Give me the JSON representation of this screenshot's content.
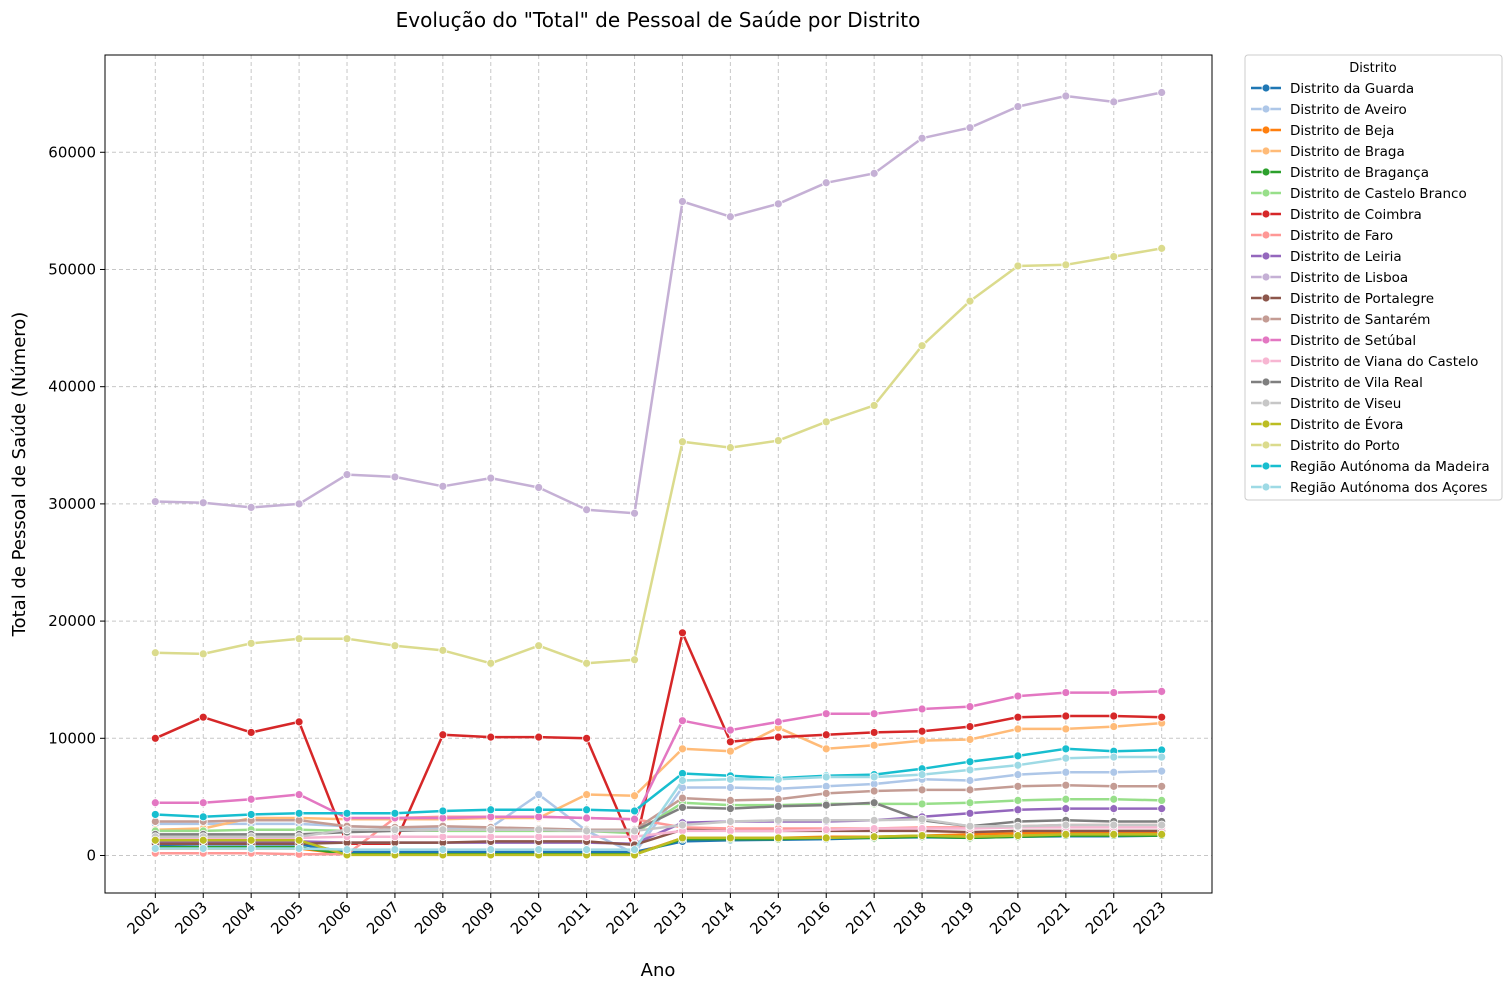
{
  "chart_data": {
    "type": "line",
    "title": "Evolução do \"Total\" de Pessoal de Saúde por Distrito",
    "xlabel": "Ano",
    "ylabel": "Total de Pessoal de Saúde (Número)",
    "x": [
      2002,
      2003,
      2004,
      2005,
      2006,
      2007,
      2008,
      2009,
      2010,
      2011,
      2012,
      2013,
      2014,
      2015,
      2016,
      2017,
      2018,
      2019,
      2020,
      2021,
      2022,
      2023
    ],
    "x_tick_labels": [
      "2002",
      "2003",
      "2004",
      "2005",
      "2006",
      "2007",
      "2008",
      "2009",
      "2010",
      "2011",
      "2012",
      "2013",
      "2014",
      "2015",
      "2016",
      "2017",
      "2018",
      "2019",
      "2020",
      "2021",
      "2022",
      "2023"
    ],
    "ylim": [
      -3200,
      68300
    ],
    "y_ticks": [
      0,
      10000,
      20000,
      30000,
      40000,
      50000,
      60000
    ],
    "y_tick_labels": [
      "0",
      "10000",
      "20000",
      "30000",
      "40000",
      "50000",
      "60000"
    ],
    "grid": true,
    "legend_title": "Distrito",
    "legend_position": "outside-top-right",
    "series": [
      {
        "name": "Distrito da Guarda",
        "color": "#1f77b4",
        "values": [
          900,
          950,
          950,
          950,
          300,
          300,
          300,
          300,
          300,
          300,
          300,
          1200,
          1300,
          1350,
          1400,
          1500,
          1550,
          1500,
          1600,
          1650,
          1650,
          1700
        ]
      },
      {
        "name": "Distrito de Aveiro",
        "color": "#aec7e8",
        "values": [
          2700,
          2700,
          2700,
          2700,
          2500,
          2400,
          2400,
          2400,
          5200,
          2100,
          200,
          5800,
          5800,
          5700,
          5900,
          6100,
          6500,
          6400,
          6900,
          7100,
          7100,
          7200
        ]
      },
      {
        "name": "Distrito de Beja",
        "color": "#ff7f0e",
        "values": [
          600,
          600,
          600,
          600,
          100,
          100,
          100,
          100,
          100,
          100,
          100,
          1500,
          1500,
          1500,
          1600,
          1600,
          1700,
          1800,
          1900,
          1950,
          1950,
          2000
        ]
      },
      {
        "name": "Distrito de Braga",
        "color": "#ffbb78",
        "values": [
          2200,
          2300,
          3200,
          3200,
          3100,
          3100,
          3100,
          3200,
          3200,
          5200,
          5100,
          9100,
          8900,
          10900,
          9100,
          9400,
          9800,
          9900,
          10800,
          10800,
          11000,
          11300
        ]
      },
      {
        "name": "Distrito de Bragança",
        "color": "#2ca02c",
        "values": [
          700,
          700,
          700,
          700,
          100,
          100,
          100,
          100,
          100,
          100,
          100,
          1400,
          1400,
          1400,
          1500,
          1500,
          1600,
          1500,
          1600,
          1700,
          1700,
          1700
        ]
      },
      {
        "name": "Distrito de Castelo Branco",
        "color": "#98df8a",
        "values": [
          2100,
          2100,
          2200,
          2200,
          2100,
          2200,
          2100,
          2100,
          2100,
          2100,
          1900,
          4500,
          4300,
          4300,
          4400,
          4400,
          4400,
          4500,
          4700,
          4800,
          4800,
          4700
        ]
      },
      {
        "name": "Distrito de Coimbra",
        "color": "#d62728",
        "values": [
          10000,
          11800,
          10500,
          11400,
          1000,
          1000,
          10300,
          10100,
          10100,
          10000,
          500,
          19000,
          9700,
          10100,
          10300,
          10500,
          10600,
          11000,
          11800,
          11900,
          11900,
          11800
        ]
      },
      {
        "name": "Distrito de Faro",
        "color": "#ff9896",
        "values": [
          200,
          200,
          200,
          100,
          100,
          3200,
          3300,
          3300,
          3300,
          3200,
          3100,
          2400,
          2300,
          2300,
          2300,
          2300,
          2400,
          2400,
          2500,
          2600,
          2600,
          2600
        ]
      },
      {
        "name": "Distrito de Leiria",
        "color": "#9467bd",
        "values": [
          1200,
          1200,
          1200,
          1200,
          1100,
          1100,
          1100,
          1100,
          1100,
          1100,
          1000,
          2800,
          2900,
          2900,
          2900,
          3000,
          3300,
          3600,
          3900,
          4000,
          4000,
          4000
        ]
      },
      {
        "name": "Distrito de Lisboa",
        "color": "#c5b0d5",
        "values": [
          30200,
          30100,
          29700,
          30000,
          32500,
          32300,
          31500,
          32200,
          31400,
          29500,
          29200,
          55800,
          54500,
          55600,
          57400,
          58200,
          61200,
          62100,
          63900,
          64800,
          64300,
          65100
        ]
      },
      {
        "name": "Distrito de Portalegre",
        "color": "#8c564b",
        "values": [
          1000,
          1000,
          1000,
          1000,
          1100,
          1100,
          1100,
          1200,
          1200,
          1200,
          900,
          2200,
          2100,
          2100,
          2100,
          2100,
          2100,
          2000,
          2100,
          2100,
          2100,
          2100
        ]
      },
      {
        "name": "Distrito de Santarém",
        "color": "#c49c94",
        "values": [
          2900,
          2900,
          3000,
          3000,
          2500,
          2400,
          2500,
          2400,
          2300,
          2200,
          2200,
          4900,
          4700,
          4800,
          5300,
          5500,
          5600,
          5600,
          5900,
          6000,
          5900,
          5900
        ]
      },
      {
        "name": "Distrito de Setúbal",
        "color": "#e377c2",
        "values": [
          4500,
          4500,
          4800,
          5200,
          3200,
          3200,
          3200,
          3300,
          3300,
          3200,
          3100,
          11500,
          10700,
          11400,
          12100,
          12100,
          12500,
          12700,
          13600,
          13900,
          13900,
          14000
        ]
      },
      {
        "name": "Distrito de Viana do Castelo",
        "color": "#f7b6d2",
        "values": [
          1500,
          1500,
          1500,
          1500,
          1600,
          1600,
          1600,
          1600,
          1600,
          1600,
          1600,
          2100,
          2100,
          2100,
          2200,
          2300,
          2300,
          2300,
          2400,
          2400,
          2400,
          2400
        ]
      },
      {
        "name": "Distrito de Vila Real",
        "color": "#7f7f7f",
        "values": [
          1800,
          1800,
          1800,
          1800,
          2000,
          2100,
          2200,
          2200,
          2200,
          2100,
          2100,
          4100,
          4000,
          4200,
          4300,
          4500,
          3000,
          2500,
          2900,
          3000,
          2900,
          2900
        ]
      },
      {
        "name": "Distrito de Viseu",
        "color": "#c7c7c7",
        "values": [
          1600,
          1600,
          1600,
          1600,
          2200,
          2200,
          2200,
          2200,
          2200,
          2100,
          2100,
          2600,
          2900,
          3000,
          3000,
          3000,
          3100,
          2500,
          2500,
          2600,
          2600,
          2600
        ]
      },
      {
        "name": "Distrito de Évora",
        "color": "#bcbd22",
        "values": [
          1300,
          1300,
          1300,
          1300,
          50,
          50,
          50,
          50,
          50,
          50,
          50,
          1500,
          1500,
          1500,
          1500,
          1600,
          1700,
          1600,
          1700,
          1800,
          1800,
          1800
        ]
      },
      {
        "name": "Distrito do Porto",
        "color": "#dbdb8d",
        "values": [
          17300,
          17200,
          18100,
          18500,
          18500,
          17900,
          17500,
          16400,
          17900,
          16400,
          16700,
          35300,
          34800,
          35400,
          37000,
          38400,
          43500,
          47300,
          50300,
          50400,
          51100,
          51800
        ]
      },
      {
        "name": "Região Autónoma da Madeira",
        "color": "#17becf",
        "values": [
          3500,
          3300,
          3500,
          3600,
          3600,
          3600,
          3800,
          3900,
          3900,
          3900,
          3800,
          7000,
          6800,
          6600,
          6800,
          6900,
          7400,
          8000,
          8500,
          9100,
          8900,
          9000
        ]
      },
      {
        "name": "Região Autónoma dos Açores",
        "color": "#9edae5",
        "values": [
          600,
          600,
          600,
          600,
          500,
          500,
          500,
          500,
          500,
          500,
          500,
          6400,
          6500,
          6500,
          6700,
          6700,
          6900,
          7300,
          7700,
          8300,
          8400,
          8400
        ]
      }
    ]
  }
}
